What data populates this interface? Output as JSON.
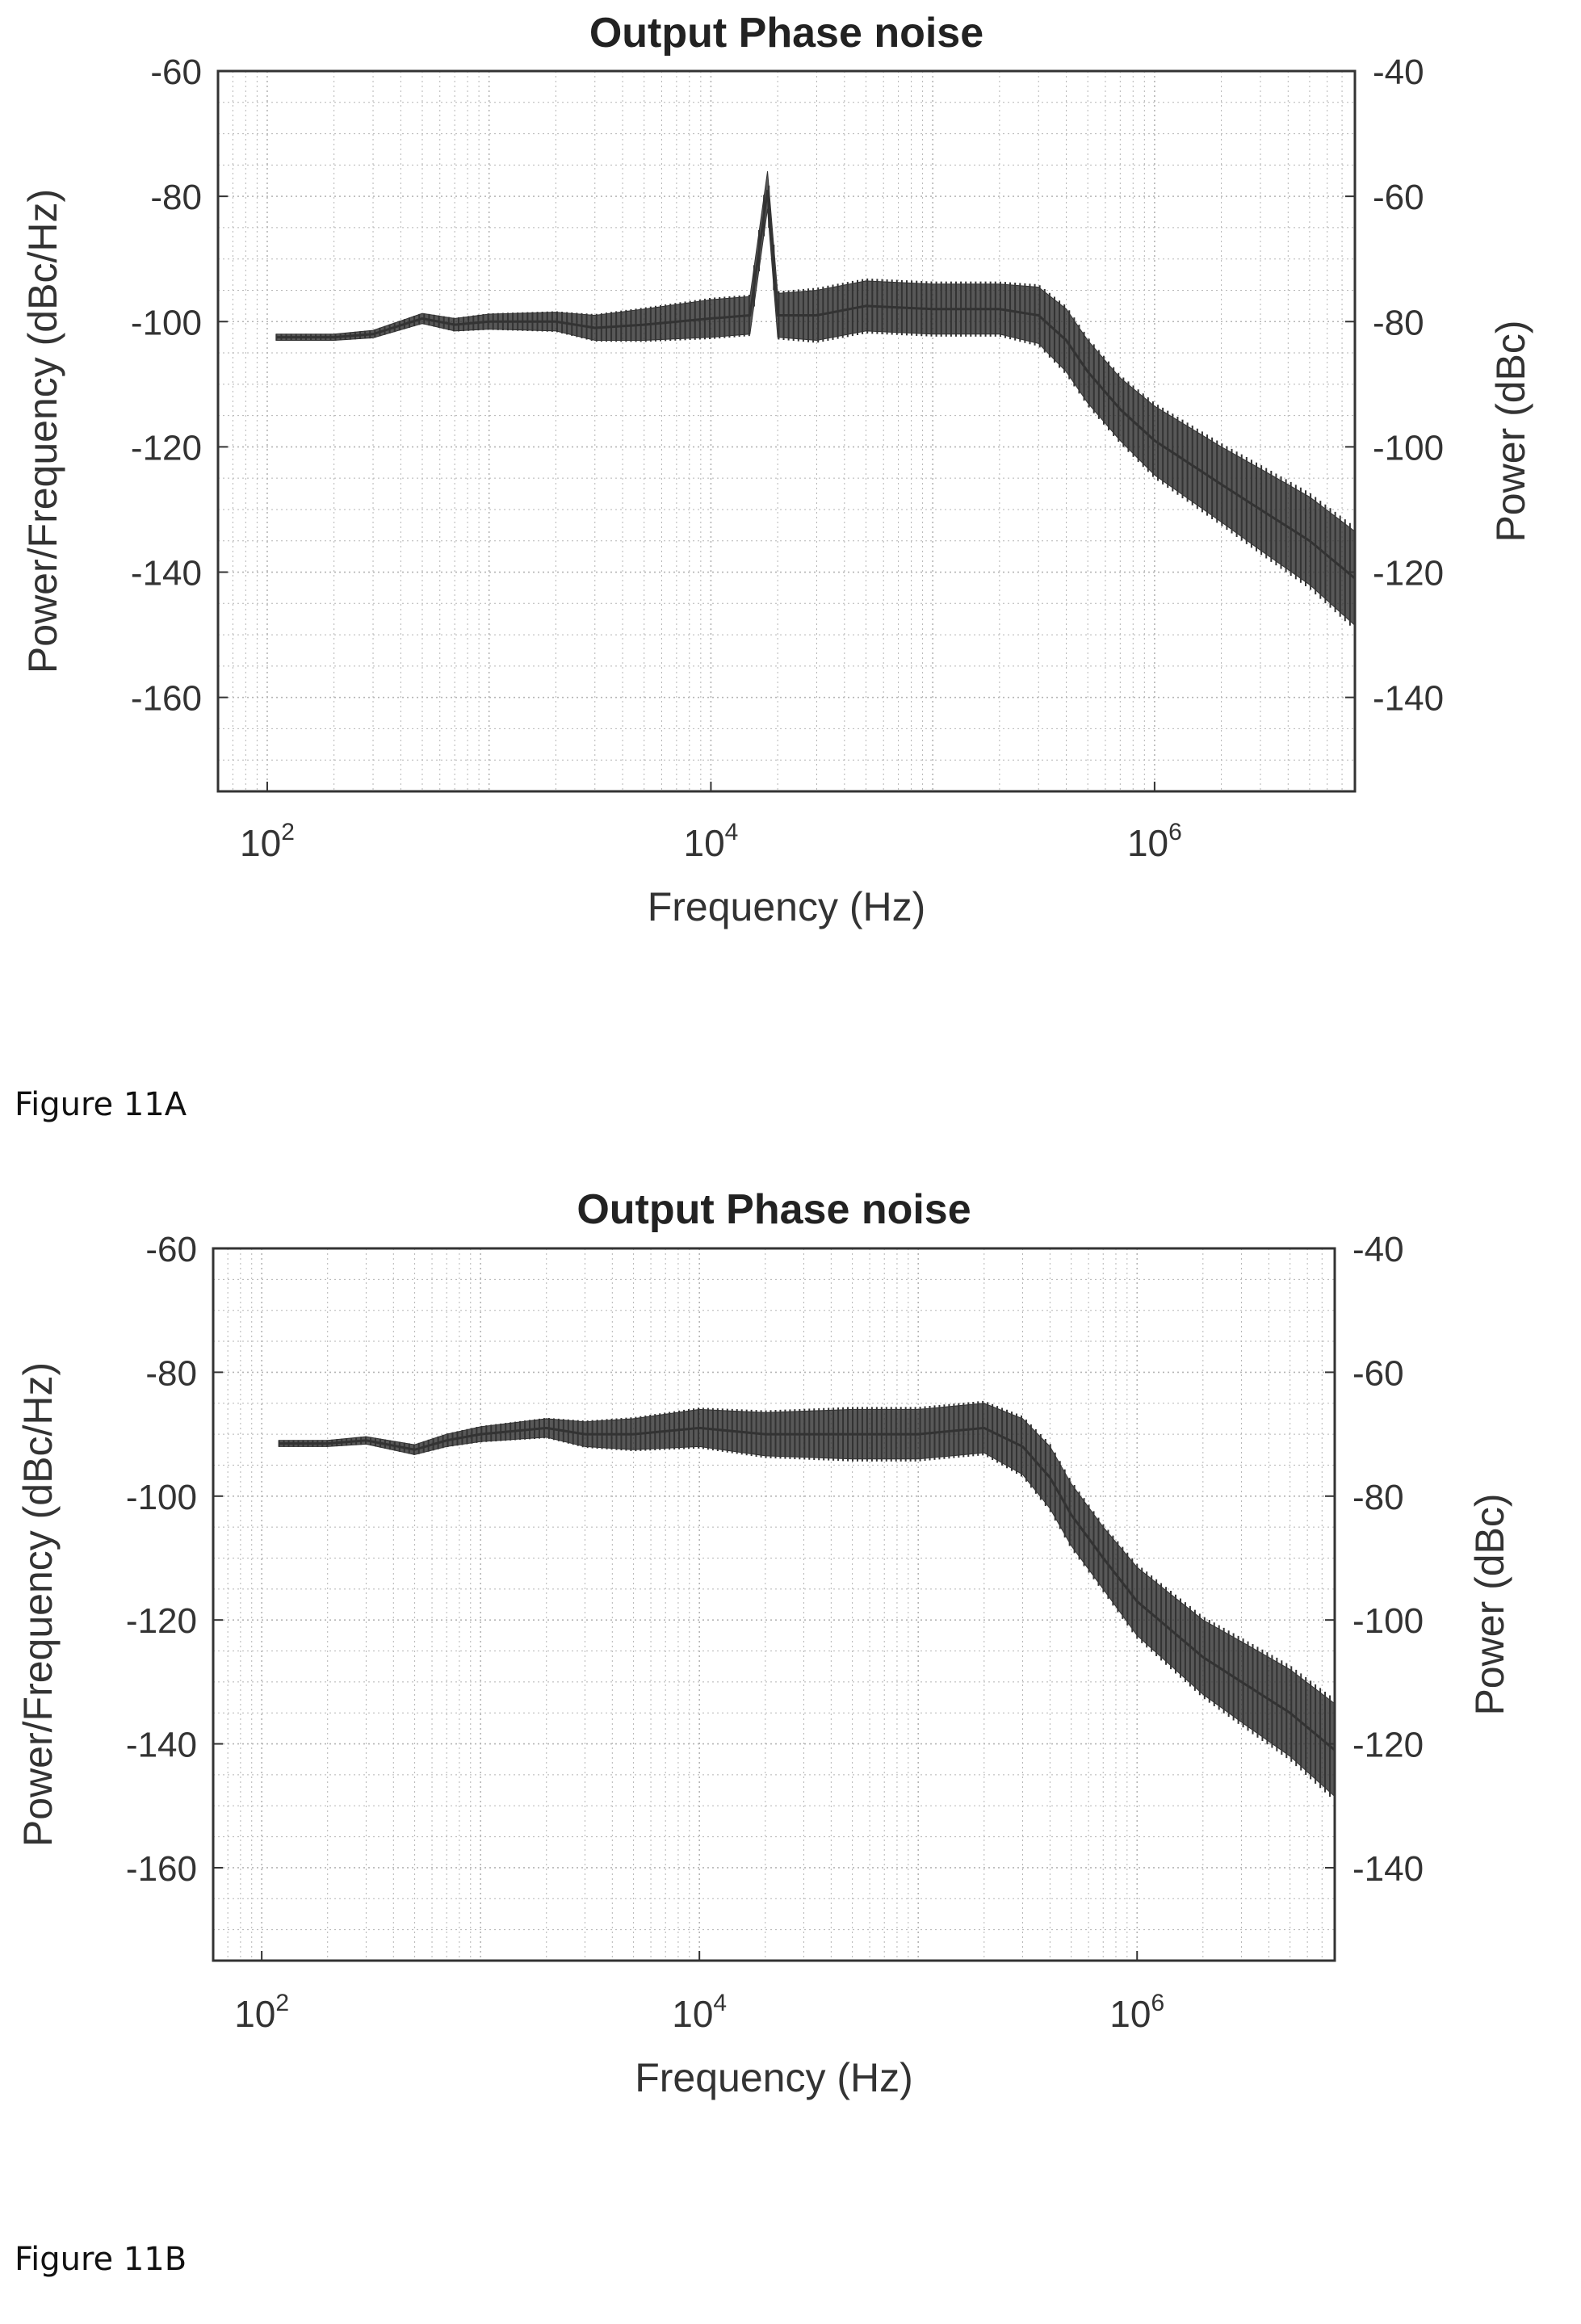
{
  "figures": [
    {
      "caption": "Figure 11A"
    },
    {
      "caption": "Figure 11B"
    }
  ],
  "chart_data": [
    {
      "type": "line",
      "title": "Output Phase noise",
      "xlabel": "Frequency (Hz)",
      "ylabel": "Power/Frequency (dBc/Hz)",
      "y2label": "Power (dBc)",
      "xscale": "log",
      "xlim": [
        60,
        8000000
      ],
      "ylim": [
        -175,
        -60
      ],
      "y2lim": [
        -155,
        -40
      ],
      "xtick_labels": [
        {
          "base": "10",
          "exp": "2",
          "value": 100
        },
        {
          "base": "10",
          "exp": "4",
          "value": 10000
        },
        {
          "base": "10",
          "exp": "6",
          "value": 1000000
        }
      ],
      "yticks": [
        -60,
        -80,
        -100,
        -120,
        -140,
        -160
      ],
      "ytick_labels": [
        "-60",
        "-80",
        "-100",
        "-120",
        "-140",
        "-160"
      ],
      "y2ticks": [
        -40,
        -60,
        -80,
        -100,
        -120,
        -140
      ],
      "y2tick_labels": [
        "-40",
        "-60",
        "-80",
        "-100",
        "-120",
        "-140"
      ],
      "grid": true,
      "series": [
        {
          "color": "#333333",
          "x": [
            110,
            200,
            300,
            500,
            700,
            1000,
            2000,
            3000,
            5000,
            10000,
            15000,
            18000,
            20000,
            30000,
            50000,
            100000,
            200000,
            300000,
            400000,
            500000,
            700000,
            1000000,
            2000000,
            3000000,
            5000000,
            8000000
          ],
          "y": [
            -102.5,
            -102.5,
            -102,
            -99.5,
            -100.5,
            -100,
            -100,
            -101,
            -100.5,
            -99.5,
            -99,
            -79,
            -99,
            -99,
            -97.5,
            -98,
            -98,
            -99,
            -103,
            -108,
            -114,
            -119,
            -126,
            -130,
            -135,
            -141
          ],
          "band": [
            0.5,
            0.5,
            0.6,
            0.8,
            1,
            1.2,
            1.5,
            2,
            2.5,
            3,
            3,
            3,
            3.5,
            4,
            4,
            4,
            4,
            4.5,
            5,
            5,
            5,
            5.5,
            6,
            6.5,
            7,
            7.5
          ]
        }
      ]
    },
    {
      "type": "line",
      "title": "Output Phase noise",
      "xlabel": "Frequency (Hz)",
      "ylabel": "Power/Frequency (dBc/Hz)",
      "y2label": "Power (dBc)",
      "xscale": "log",
      "xlim": [
        60,
        8000000
      ],
      "ylim": [
        -175,
        -60
      ],
      "y2lim": [
        -155,
        -40
      ],
      "xtick_labels": [
        {
          "base": "10",
          "exp": "2",
          "value": 100
        },
        {
          "base": "10",
          "exp": "4",
          "value": 10000
        },
        {
          "base": "10",
          "exp": "6",
          "value": 1000000
        }
      ],
      "yticks": [
        -60,
        -80,
        -100,
        -120,
        -140,
        -160
      ],
      "ytick_labels": [
        "-60",
        "-80",
        "-100",
        "-120",
        "-140",
        "-160"
      ],
      "y2ticks": [
        -40,
        -60,
        -80,
        -100,
        -120,
        -140
      ],
      "y2tick_labels": [
        "-40",
        "-60",
        "-80",
        "-100",
        "-120",
        "-140"
      ],
      "grid": true,
      "series": [
        {
          "color": "#333333",
          "x": [
            120,
            200,
            300,
            500,
            700,
            1000,
            2000,
            3000,
            5000,
            10000,
            20000,
            50000,
            100000,
            200000,
            300000,
            400000,
            500000,
            700000,
            1000000,
            2000000,
            3000000,
            5000000,
            8000000
          ],
          "y": [
            -91.5,
            -91.5,
            -91,
            -92.5,
            -91,
            -90,
            -89,
            -90,
            -90,
            -89,
            -90,
            -90,
            -90,
            -89,
            -92,
            -97,
            -103,
            -110,
            -117,
            -126,
            -130,
            -135,
            -141
          ],
          "band": [
            0.5,
            0.5,
            0.6,
            0.8,
            1,
            1.2,
            1.5,
            2,
            2.5,
            3,
            3.5,
            4,
            4,
            4,
            4.5,
            5,
            5,
            5,
            5.5,
            6,
            6.5,
            7,
            7.5
          ]
        }
      ]
    }
  ]
}
